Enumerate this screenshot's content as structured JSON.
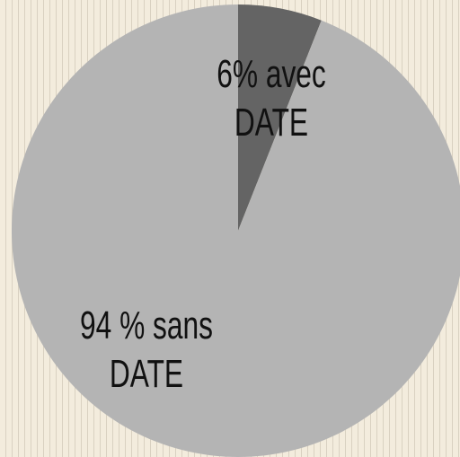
{
  "chart_data": {
    "type": "pie",
    "values": [
      6,
      94
    ],
    "value_labels": [
      "6% avec DATE",
      "94 % sans DATE"
    ],
    "colors": [
      "#646464",
      "#b4b4b4"
    ]
  }
}
